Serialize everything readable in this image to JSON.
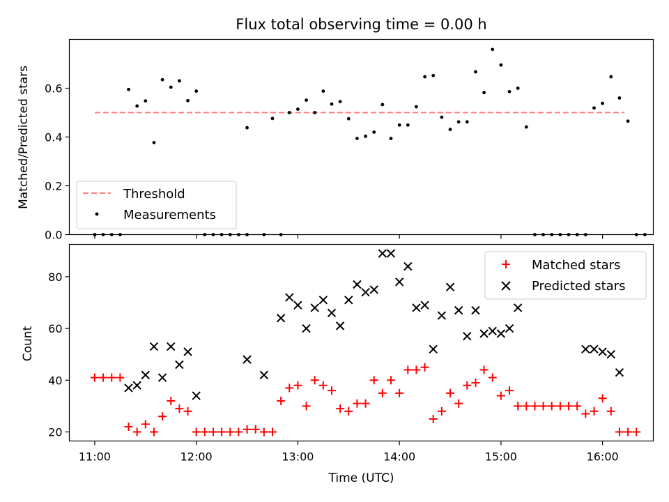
{
  "figure": {
    "title": "Flux total observing time = 0.00 h",
    "xlabel": "Time (UTC)"
  },
  "chart_data": [
    {
      "type": "scatter",
      "ylabel": "Matched/Predicted stars",
      "xlim": [
        "10:45",
        "16:30"
      ],
      "ylim": [
        0,
        0.8
      ],
      "yticks": [
        "0.0",
        "0.2",
        "0.4",
        "0.6"
      ],
      "threshold": {
        "name": "Threshold",
        "value": 0.5,
        "color": "#ff7f7f",
        "x_range": [
          "11:00",
          "16:13"
        ]
      },
      "legend": {
        "placement": "lower-left",
        "entries": [
          "Threshold",
          "Measurements"
        ]
      },
      "series": [
        {
          "name": "Measurements",
          "color": "#000000",
          "points": [
            [
              "11:00",
              0.0
            ],
            [
              "11:05",
              0.0
            ],
            [
              "11:10",
              0.0
            ],
            [
              "11:15",
              0.0
            ],
            [
              "11:20",
              0.595
            ],
            [
              "11:25",
              0.527
            ],
            [
              "11:30",
              0.548
            ],
            [
              "11:35",
              0.377
            ],
            [
              "11:40",
              0.635
            ],
            [
              "11:45",
              0.604
            ],
            [
              "11:50",
              0.63
            ],
            [
              "11:55",
              0.549
            ],
            [
              "12:00",
              0.588
            ],
            [
              "12:05",
              0.0
            ],
            [
              "12:10",
              0.0
            ],
            [
              "12:15",
              0.0
            ],
            [
              "12:20",
              0.0
            ],
            [
              "12:25",
              0.0
            ],
            [
              "12:30",
              0.0
            ],
            [
              "12:30",
              0.438
            ],
            [
              "12:40",
              0.0
            ],
            [
              "12:45",
              0.476
            ],
            [
              "12:50",
              0.0
            ],
            [
              "12:55",
              0.5
            ],
            [
              "13:00",
              0.514
            ],
            [
              "13:05",
              0.551
            ],
            [
              "13:10",
              0.5
            ],
            [
              "13:15",
              0.588
            ],
            [
              "13:20",
              0.535
            ],
            [
              "13:25",
              0.545
            ],
            [
              "13:30",
              0.475
            ],
            [
              "13:35",
              0.394
            ],
            [
              "13:40",
              0.403
            ],
            [
              "13:45",
              0.42
            ],
            [
              "13:50",
              0.533
            ],
            [
              "13:55",
              0.394
            ],
            [
              "14:00",
              0.449
            ],
            [
              "14:05",
              0.449
            ],
            [
              "14:10",
              0.524
            ],
            [
              "14:15",
              0.647
            ],
            [
              "14:20",
              0.652
            ],
            [
              "14:25",
              0.481
            ],
            [
              "14:30",
              0.431
            ],
            [
              "14:35",
              0.462
            ],
            [
              "14:40",
              0.462
            ],
            [
              "14:45",
              0.667
            ],
            [
              "14:50",
              0.582
            ],
            [
              "14:55",
              0.759
            ],
            [
              "15:00",
              0.695
            ],
            [
              "15:05",
              0.586
            ],
            [
              "15:10",
              0.6
            ],
            [
              "15:15",
              0.441
            ],
            [
              "15:20",
              0.0
            ],
            [
              "15:25",
              0.0
            ],
            [
              "15:30",
              0.0
            ],
            [
              "15:35",
              0.0
            ],
            [
              "15:40",
              0.0
            ],
            [
              "15:45",
              0.0
            ],
            [
              "15:50",
              0.0
            ],
            [
              "15:55",
              0.519
            ],
            [
              "16:00",
              0.538
            ],
            [
              "16:05",
              0.647
            ],
            [
              "16:10",
              0.56
            ],
            [
              "16:15",
              0.465
            ],
            [
              "16:20",
              0.0
            ],
            [
              "16:25",
              0.0
            ]
          ]
        }
      ]
    },
    {
      "type": "scatter",
      "ylabel": "Count",
      "xlim": [
        "10:45",
        "16:30"
      ],
      "ylim": [
        16.5,
        92.5
      ],
      "xticks": [
        "11:00",
        "12:00",
        "13:00",
        "14:00",
        "15:00",
        "16:00"
      ],
      "yticks": [
        "20",
        "40",
        "60",
        "80"
      ],
      "legend": {
        "placement": "top-right",
        "entries": [
          "Matched stars",
          "Predicted stars"
        ]
      },
      "series": [
        {
          "name": "Matched stars",
          "marker": "plus",
          "color": "#ff0000",
          "points": [
            [
              "11:00",
              41
            ],
            [
              "11:05",
              41
            ],
            [
              "11:10",
              41
            ],
            [
              "11:15",
              41
            ],
            [
              "11:20",
              22
            ],
            [
              "11:25",
              20
            ],
            [
              "11:30",
              23
            ],
            [
              "11:35",
              20
            ],
            [
              "11:40",
              26
            ],
            [
              "11:45",
              32
            ],
            [
              "11:50",
              29
            ],
            [
              "11:55",
              28
            ],
            [
              "12:00",
              20
            ],
            [
              "12:05",
              20
            ],
            [
              "12:10",
              20
            ],
            [
              "12:15",
              20
            ],
            [
              "12:20",
              20
            ],
            [
              "12:25",
              20
            ],
            [
              "12:30",
              21
            ],
            [
              "12:35",
              21
            ],
            [
              "12:40",
              20
            ],
            [
              "12:45",
              20
            ],
            [
              "12:50",
              32
            ],
            [
              "12:55",
              37
            ],
            [
              "13:00",
              38
            ],
            [
              "13:05",
              30
            ],
            [
              "13:10",
              40
            ],
            [
              "13:15",
              38
            ],
            [
              "13:20",
              36
            ],
            [
              "13:25",
              29
            ],
            [
              "13:30",
              28
            ],
            [
              "13:35",
              31
            ],
            [
              "13:40",
              31
            ],
            [
              "13:45",
              40
            ],
            [
              "13:50",
              35
            ],
            [
              "13:55",
              40
            ],
            [
              "14:00",
              35
            ],
            [
              "14:05",
              44
            ],
            [
              "14:10",
              44
            ],
            [
              "14:15",
              45
            ],
            [
              "14:20",
              25
            ],
            [
              "14:25",
              28
            ],
            [
              "14:30",
              35
            ],
            [
              "14:35",
              31
            ],
            [
              "14:40",
              38
            ],
            [
              "14:45",
              39
            ],
            [
              "14:50",
              44
            ],
            [
              "14:55",
              41
            ],
            [
              "15:00",
              34
            ],
            [
              "15:05",
              36
            ],
            [
              "15:10",
              30
            ],
            [
              "15:15",
              30
            ],
            [
              "15:20",
              30
            ],
            [
              "15:25",
              30
            ],
            [
              "15:30",
              30
            ],
            [
              "15:35",
              30
            ],
            [
              "15:40",
              30
            ],
            [
              "15:45",
              30
            ],
            [
              "15:50",
              27
            ],
            [
              "15:55",
              28
            ],
            [
              "16:00",
              33
            ],
            [
              "16:05",
              28
            ],
            [
              "16:10",
              20
            ],
            [
              "16:15",
              20
            ],
            [
              "16:20",
              20
            ]
          ]
        },
        {
          "name": "Predicted stars",
          "marker": "x",
          "color": "#000000",
          "points": [
            [
              "11:20",
              37
            ],
            [
              "11:25",
              38
            ],
            [
              "11:30",
              42
            ],
            [
              "11:35",
              53
            ],
            [
              "11:40",
              41
            ],
            [
              "11:45",
              53
            ],
            [
              "11:50",
              46
            ],
            [
              "11:55",
              51
            ],
            [
              "12:00",
              34
            ],
            [
              "12:30",
              48
            ],
            [
              "12:40",
              42
            ],
            [
              "12:50",
              64
            ],
            [
              "12:55",
              72
            ],
            [
              "13:00",
              69
            ],
            [
              "13:05",
              60
            ],
            [
              "13:10",
              68
            ],
            [
              "13:15",
              71
            ],
            [
              "13:20",
              66
            ],
            [
              "13:25",
              61
            ],
            [
              "13:30",
              71
            ],
            [
              "13:35",
              77
            ],
            [
              "13:40",
              74
            ],
            [
              "13:45",
              75
            ],
            [
              "13:50",
              89
            ],
            [
              "13:55",
              89
            ],
            [
              "14:00",
              78
            ],
            [
              "14:05",
              84
            ],
            [
              "14:10",
              68
            ],
            [
              "14:15",
              69
            ],
            [
              "14:20",
              52
            ],
            [
              "14:25",
              65
            ],
            [
              "14:30",
              76
            ],
            [
              "14:35",
              67
            ],
            [
              "14:40",
              57
            ],
            [
              "14:45",
              67
            ],
            [
              "14:50",
              58
            ],
            [
              "14:55",
              59
            ],
            [
              "15:00",
              58
            ],
            [
              "15:05",
              60
            ],
            [
              "15:10",
              68
            ],
            [
              "15:50",
              52
            ],
            [
              "15:55",
              52
            ],
            [
              "16:00",
              51
            ],
            [
              "16:05",
              50
            ],
            [
              "16:10",
              43
            ]
          ]
        }
      ]
    }
  ]
}
